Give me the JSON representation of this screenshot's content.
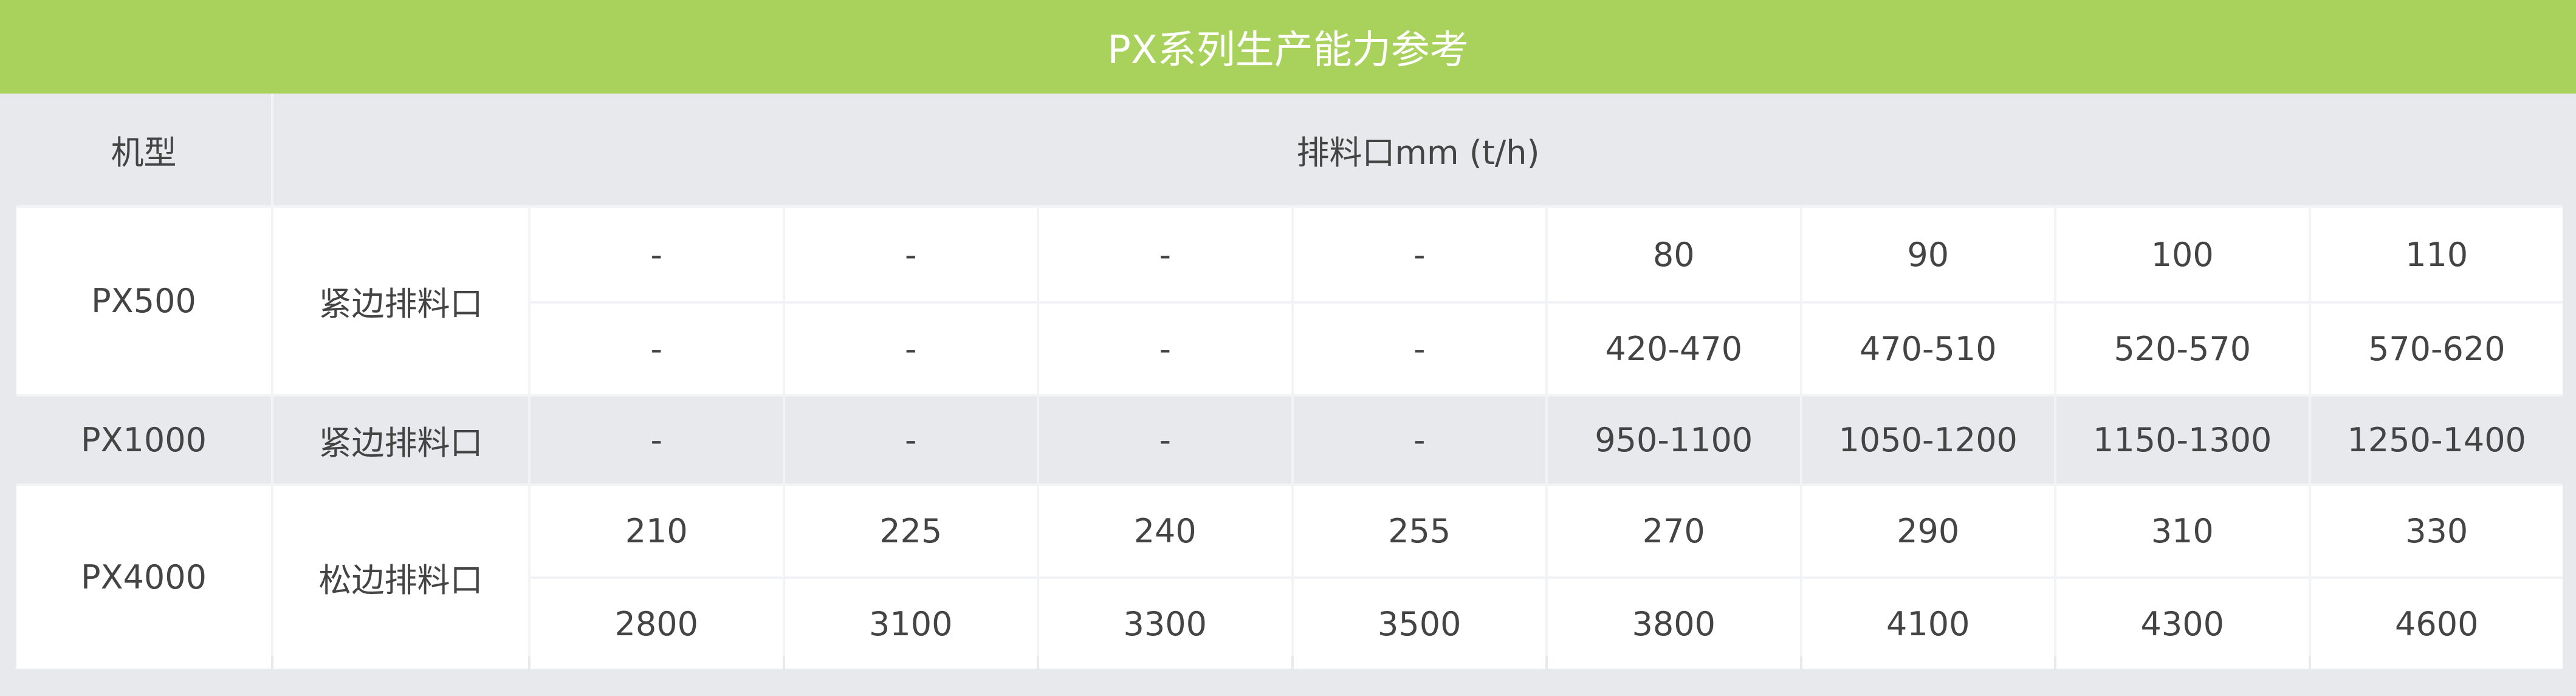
{
  "title": "PX系列生产能力参考",
  "header": {
    "model": "机型",
    "discharge": "排料口mm (t/h)"
  },
  "colors": {
    "title_bar": "#a9d25c",
    "gray_row": "#e8e9ec",
    "white_row": "#ffffff"
  },
  "rows": [
    {
      "model": "PX500",
      "setting": "紧边排料口",
      "openings": [
        "-",
        "-",
        "-",
        "-",
        "80",
        "90",
        "100",
        "110"
      ],
      "capacity": [
        "-",
        "-",
        "-",
        "-",
        "420-470",
        "470-510",
        "520-570",
        "570-620"
      ]
    },
    {
      "model": "PX1000",
      "setting": "紧边排料口",
      "capacity": [
        "-",
        "-",
        "-",
        "-",
        "950-1100",
        "1050-1200",
        "1150-1300",
        "1250-1400"
      ]
    },
    {
      "model": "PX4000",
      "setting": "松边排料口",
      "openings": [
        "210",
        "225",
        "240",
        "255",
        "270",
        "290",
        "310",
        "330"
      ],
      "capacity": [
        "2800",
        "3100",
        "3300",
        "3500",
        "3800",
        "4100",
        "4300",
        "4600"
      ]
    }
  ]
}
